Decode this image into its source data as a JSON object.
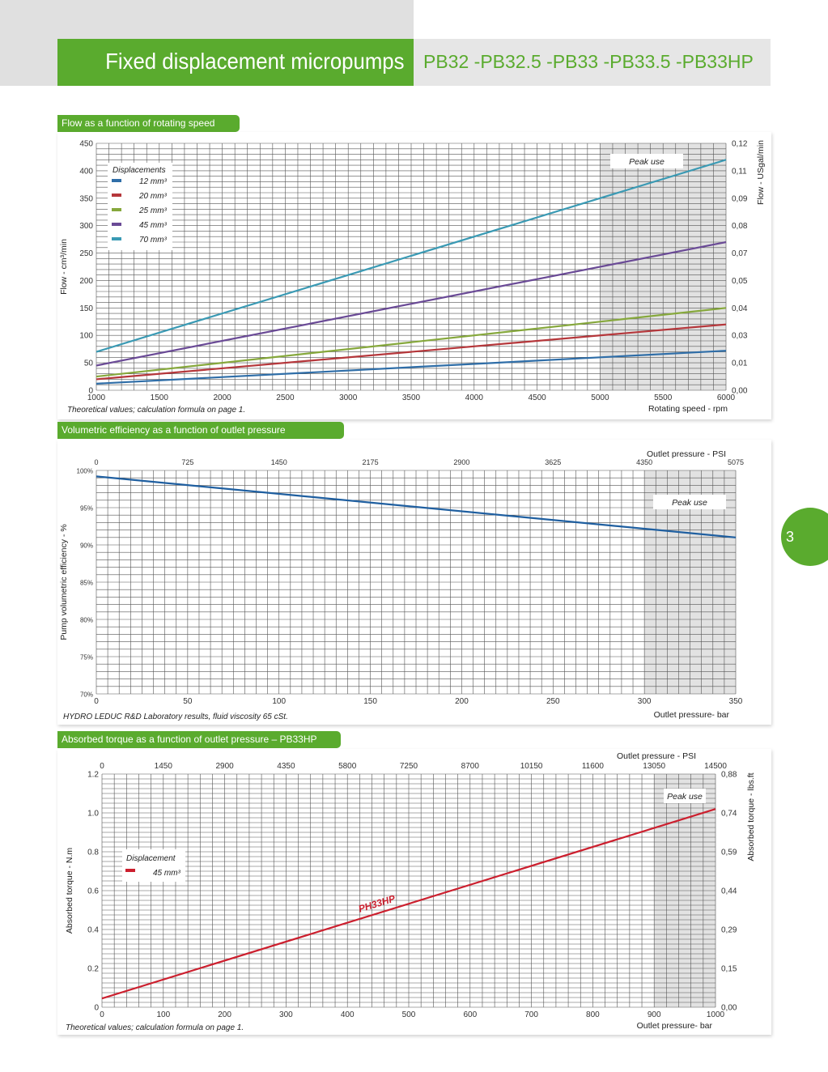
{
  "header": {
    "title": "Fixed displacement micropumps",
    "models": "PB32 -PB32.5 -PB33 -PB33.5 -PB33HP"
  },
  "page_number": "3",
  "chart1": {
    "section_title": "Flow as a function of rotating speed",
    "ylabel_left": "Flow - cm³/min",
    "ylabel_right": "Flow - USgal/min",
    "xlabel": "Rotating  speed - rpm",
    "footnote": "Theoretical values; calculation formula on page 1.",
    "legend_title": "Displacements",
    "peak_label": "Peak use"
  },
  "chart2": {
    "section_title": "Volumetric efficiency as a function of outlet pressure",
    "ylabel_left": "Pump volumetric efficiency - %",
    "xlabel_bottom": "Outlet pressure- bar",
    "xlabel_top": "Outlet pressure - PSI",
    "footnote": "HYDRO LEDUC R&D Laboratory results, fluid viscosity 65 cSt.",
    "peak_label": "Peak use"
  },
  "chart3": {
    "section_title": "Absorbed torque as a function of outlet pressure – PB33HP",
    "ylabel_left": "Absorbed torque - N.m",
    "ylabel_right": "Absorbed torque - lbs.ft",
    "xlabel_bottom": "Outlet pressure- bar",
    "xlabel_top": "Outlet pressure - PSI",
    "footnote": "Theoretical values; calculation formula on page 1.",
    "legend_title": "Displacement",
    "line_label": "PH33HP",
    "peak_label": "Peak use"
  },
  "chart_data": [
    {
      "type": "line",
      "title": "Flow as a function of rotating speed",
      "xlabel": "Rotating speed - rpm",
      "ylabel": "Flow - cm³/min",
      "ylabel_right": "Flow - USgal/min",
      "xlim": [
        1000,
        6000
      ],
      "ylim": [
        0,
        450
      ],
      "x_ticks": [
        "1000",
        "1500",
        "2000",
        "2500",
        "3000",
        "3500",
        "4000",
        "4500",
        "5000",
        "5500",
        "6000"
      ],
      "y_ticks": [
        "0",
        "50",
        "100",
        "150",
        "200",
        "250",
        "300",
        "350",
        "400",
        "450"
      ],
      "y_ticks_right": [
        "0,00",
        "0,01",
        "0,03",
        "0,04",
        "0,05",
        "0,07",
        "0,08",
        "0,09",
        "0,11",
        "0,12"
      ],
      "peak_region": [
        5000,
        6000
      ],
      "legend_position": "top-left",
      "series": [
        {
          "name": "12 mm³",
          "color": "#2f6ea8",
          "x": [
            1000,
            6000
          ],
          "values": [
            12,
            72
          ]
        },
        {
          "name": "20 mm³",
          "color": "#b5373b",
          "x": [
            1000,
            6000
          ],
          "values": [
            20,
            120
          ]
        },
        {
          "name": "25 mm³",
          "color": "#86a83c",
          "x": [
            1000,
            6000
          ],
          "values": [
            25,
            150
          ]
        },
        {
          "name": "45 mm³",
          "color": "#6a4a96",
          "x": [
            1000,
            6000
          ],
          "values": [
            45,
            270
          ]
        },
        {
          "name": "70 mm³",
          "color": "#3a9ab4",
          "x": [
            1000,
            6000
          ],
          "values": [
            70,
            420
          ]
        }
      ]
    },
    {
      "type": "line",
      "title": "Volumetric efficiency as a function of outlet pressure",
      "xlabel": "Outlet pressure- bar",
      "xlabel_top": "Outlet pressure - PSI",
      "ylabel": "Pump volumetric efficiency - %",
      "xlim": [
        0,
        350
      ],
      "ylim": [
        70,
        100
      ],
      "x_ticks": [
        "0",
        "50",
        "100",
        "150",
        "200",
        "250",
        "300",
        "350"
      ],
      "x_ticks_top": [
        "0",
        "725",
        "1450",
        "2175",
        "2900",
        "3625",
        "4350",
        "5075"
      ],
      "y_ticks": [
        "70%",
        "75%",
        "80%",
        "85%",
        "90%",
        "95%",
        "100%"
      ],
      "peak_region": [
        300,
        350
      ],
      "series": [
        {
          "name": "",
          "color": "#1f5fa0",
          "x": [
            0,
            350
          ],
          "values": [
            99.2,
            91.0
          ]
        }
      ]
    },
    {
      "type": "line",
      "title": "Absorbed torque as a function of outlet pressure – PB33HP",
      "xlabel": "Outlet pressure- bar",
      "xlabel_top": "Outlet pressure - PSI",
      "ylabel": "Absorbed torque - N.m",
      "ylabel_right": "Absorbed torque - lbs.ft",
      "xlim": [
        0,
        1000
      ],
      "ylim": [
        0,
        1.2
      ],
      "x_ticks": [
        "0",
        "100",
        "200",
        "300",
        "400",
        "500",
        "600",
        "700",
        "800",
        "900",
        "1000"
      ],
      "x_ticks_top": [
        "0",
        "1450",
        "2900",
        "4350",
        "5800",
        "7250",
        "8700",
        "10150",
        "11600",
        "13050",
        "14500"
      ],
      "y_ticks": [
        "0",
        "0.2",
        "0.4",
        "0.6",
        "0.8",
        "1.0",
        "1.2"
      ],
      "y_ticks_right": [
        "0,00",
        "0,15",
        "0,29",
        "0,44",
        "0,59",
        "0,74",
        "0,88"
      ],
      "peak_region": [
        900,
        1000
      ],
      "legend_position": "center-left",
      "series": [
        {
          "name": "45 mm³",
          "color": "#cc1f2e",
          "x": [
            0,
            1000
          ],
          "values": [
            0.045,
            1.02
          ]
        }
      ]
    }
  ]
}
